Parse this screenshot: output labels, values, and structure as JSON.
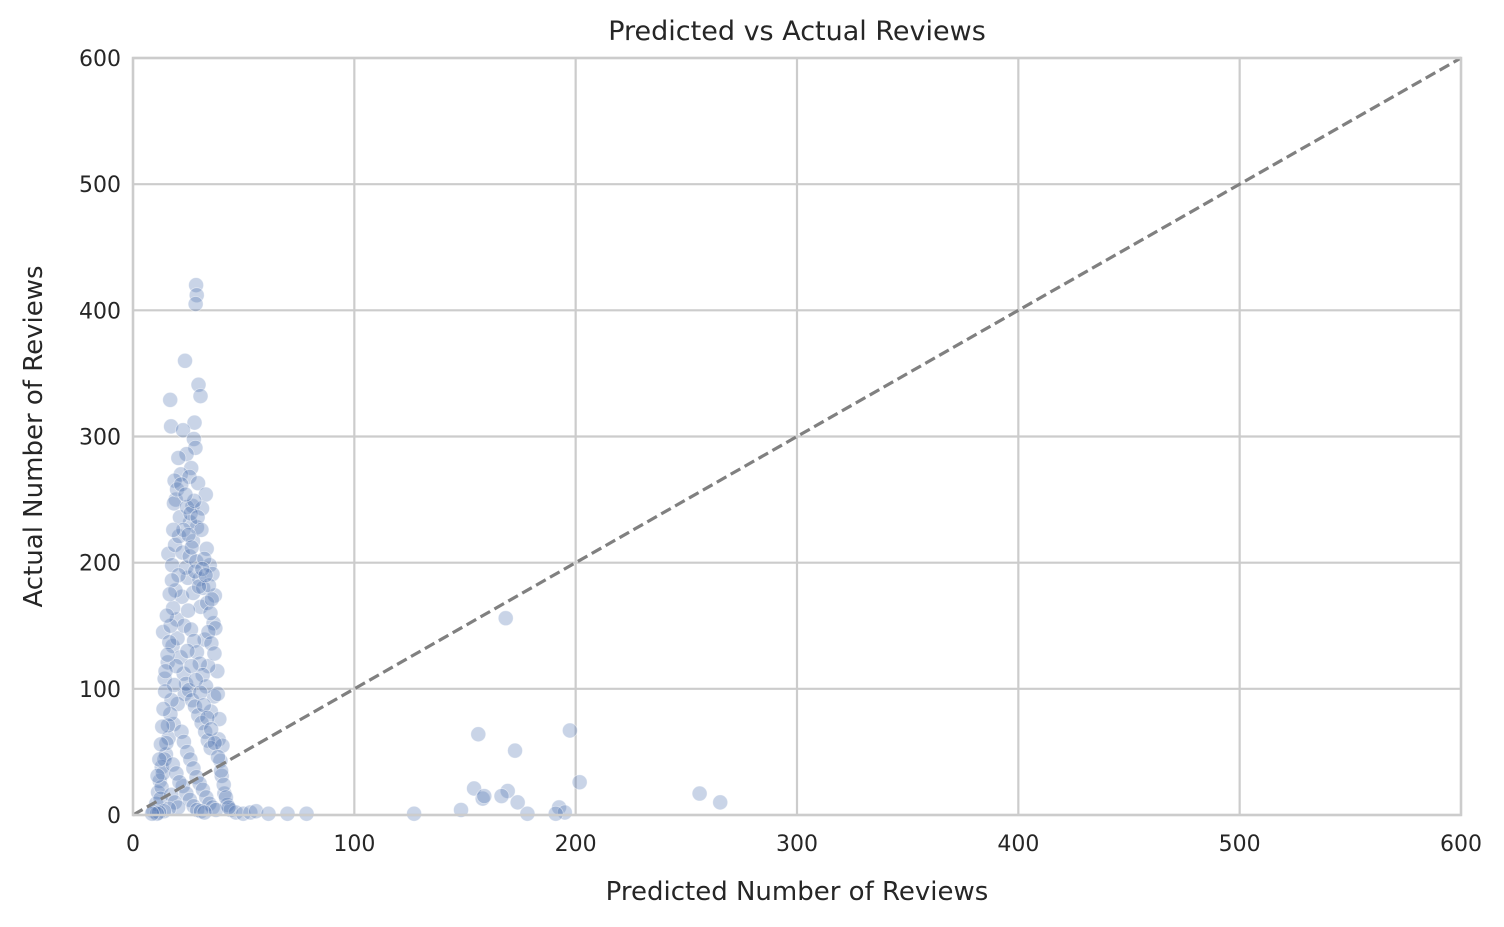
{
  "chart_data": {
    "type": "scatter",
    "title": "Predicted vs Actual Reviews",
    "xlabel": "Predicted Number of Reviews",
    "ylabel": "Actual Number of Reviews",
    "xlim": [
      0,
      600
    ],
    "ylim": [
      0,
      600
    ],
    "xticks": [
      "0",
      "100",
      "200",
      "300",
      "400",
      "500",
      "600"
    ],
    "yticks": [
      "0",
      "100",
      "200",
      "300",
      "400",
      "500",
      "600"
    ],
    "grid": true,
    "legend": "none",
    "reference_line": {
      "style": "dashed",
      "from": [
        0,
        0
      ],
      "to": [
        600,
        600
      ]
    },
    "colors": {
      "points": "#4c72b0",
      "reference_line": "#808080",
      "grid": "#cccccc",
      "spine": "#cccccc"
    },
    "point_opacity": 0.3,
    "series": [
      {
        "points": [
          [
            28.5,
            420
          ],
          [
            28.8,
            412
          ],
          [
            28.3,
            405
          ],
          [
            23.5,
            360
          ],
          [
            29.6,
            341
          ],
          [
            30.5,
            332
          ],
          [
            16.8,
            329
          ],
          [
            27.8,
            311
          ],
          [
            17.2,
            308
          ],
          [
            22.6,
            305
          ],
          [
            27.5,
            298
          ],
          [
            28.2,
            291
          ],
          [
            24.2,
            286
          ],
          [
            20.5,
            283
          ],
          [
            26.3,
            275
          ],
          [
            21.6,
            270
          ],
          [
            25.5,
            268
          ],
          [
            18.8,
            265
          ],
          [
            29.4,
            263
          ],
          [
            19.3,
            250
          ],
          [
            26.9,
            245
          ],
          [
            32.9,
            254
          ],
          [
            18.5,
            247
          ],
          [
            31.2,
            243
          ],
          [
            28.9,
            228
          ],
          [
            25.8,
            232
          ],
          [
            33.3,
            211
          ],
          [
            16.0,
            207
          ],
          [
            34.7,
            198
          ],
          [
            35.9,
            191
          ],
          [
            37.0,
            174
          ],
          [
            168.4,
            156
          ],
          [
            36.4,
            152
          ],
          [
            13.6,
            145
          ],
          [
            38.1,
            114
          ],
          [
            36.6,
            94
          ],
          [
            35.2,
            82
          ],
          [
            14.3,
            108
          ],
          [
            15.7,
            121
          ],
          [
            17.9,
            134
          ],
          [
            19.8,
            155
          ],
          [
            22.1,
            173
          ],
          [
            24.8,
            188
          ],
          [
            27.2,
            176
          ],
          [
            30.6,
            165
          ],
          [
            32.4,
            139
          ],
          [
            34.0,
            118
          ],
          [
            23.4,
            96
          ],
          [
            20.2,
            88
          ],
          [
            18.4,
            72
          ],
          [
            16.1,
            61
          ],
          [
            14.9,
            48
          ],
          [
            13.0,
            38
          ],
          [
            12.1,
            27
          ],
          [
            11.3,
            18
          ],
          [
            10.5,
            9
          ],
          [
            9.2,
            3
          ],
          [
            38.7,
            60
          ],
          [
            39.5,
            43
          ],
          [
            40.1,
            31
          ],
          [
            41.3,
            17
          ],
          [
            42.6,
            8
          ],
          [
            44.1,
            4
          ],
          [
            46.5,
            2
          ],
          [
            49.8,
            1
          ],
          [
            53.0,
            2
          ],
          [
            55.6,
            3
          ],
          [
            61.2,
            1
          ],
          [
            69.8,
            1
          ],
          [
            78.4,
            1
          ],
          [
            156.0,
            64
          ],
          [
            197.4,
            67
          ],
          [
            172.6,
            51
          ],
          [
            201.8,
            26
          ],
          [
            154.1,
            21
          ],
          [
            169.3,
            19
          ],
          [
            166.5,
            15
          ],
          [
            158.0,
            13
          ],
          [
            158.7,
            15
          ],
          [
            173.8,
            10
          ],
          [
            148.2,
            4
          ],
          [
            192.5,
            6
          ],
          [
            195.1,
            2
          ],
          [
            191.0,
            1
          ],
          [
            178.2,
            1
          ],
          [
            127.0,
            1
          ],
          [
            256.0,
            17
          ],
          [
            265.3,
            10
          ],
          [
            20.1,
            140
          ],
          [
            21.5,
            125
          ],
          [
            22.9,
            112
          ],
          [
            24.0,
            104
          ],
          [
            25.3,
            99
          ],
          [
            26.7,
            91
          ],
          [
            28.0,
            86
          ],
          [
            29.5,
            79
          ],
          [
            31.0,
            73
          ],
          [
            32.6,
            66
          ],
          [
            33.8,
            59
          ],
          [
            35.1,
            53
          ],
          [
            23.1,
            150
          ],
          [
            24.9,
            162
          ],
          [
            26.2,
            147
          ],
          [
            27.6,
            138
          ],
          [
            28.9,
            129
          ],
          [
            30.2,
            120
          ],
          [
            31.5,
            111
          ],
          [
            33.0,
            102
          ],
          [
            19.5,
            118
          ],
          [
            18.6,
            103
          ],
          [
            17.4,
            91
          ],
          [
            16.9,
            80
          ],
          [
            15.8,
            71
          ],
          [
            15.1,
            57
          ],
          [
            14.2,
            44
          ],
          [
            13.5,
            33
          ],
          [
            12.9,
            22
          ],
          [
            12.4,
            13
          ],
          [
            17.7,
            198
          ],
          [
            19.0,
            214
          ],
          [
            20.8,
            221
          ],
          [
            22.4,
            208
          ],
          [
            23.9,
            196
          ],
          [
            25.6,
            205
          ],
          [
            27.1,
            217
          ],
          [
            28.6,
            201
          ],
          [
            30.0,
            187
          ],
          [
            31.7,
            180
          ],
          [
            33.5,
            168
          ],
          [
            35.0,
            160
          ],
          [
            21.2,
            236
          ],
          [
            22.8,
            226
          ],
          [
            24.4,
            244
          ],
          [
            26.0,
            239
          ],
          [
            27.7,
            249
          ],
          [
            29.2,
            236
          ],
          [
            30.9,
            226
          ],
          [
            32.2,
            203
          ],
          [
            34.3,
            182
          ],
          [
            35.6,
            171
          ],
          [
            37.2,
            148
          ],
          [
            20.6,
            190
          ],
          [
            19.2,
            178
          ],
          [
            18.1,
            164
          ],
          [
            17.0,
            150
          ],
          [
            16.4,
            137
          ],
          [
            15.6,
            127
          ],
          [
            14.7,
            114
          ],
          [
            21.9,
            66
          ],
          [
            23.0,
            58
          ],
          [
            24.5,
            50
          ],
          [
            25.9,
            44
          ],
          [
            27.3,
            37
          ],
          [
            28.7,
            30
          ],
          [
            30.1,
            25
          ],
          [
            31.6,
            20
          ],
          [
            33.1,
            14
          ],
          [
            34.5,
            9
          ],
          [
            36.0,
            6
          ],
          [
            37.5,
            4
          ],
          [
            22.5,
            23
          ],
          [
            24.1,
            17
          ],
          [
            25.7,
            12
          ],
          [
            27.4,
            7
          ],
          [
            29.0,
            4
          ],
          [
            30.7,
            3
          ],
          [
            32.3,
            2
          ],
          [
            18.0,
            40
          ],
          [
            19.6,
            33
          ],
          [
            21.0,
            26
          ],
          [
            17.3,
            16
          ],
          [
            18.9,
            10
          ],
          [
            20.4,
            6
          ],
          [
            16.2,
            5
          ],
          [
            14.0,
            3
          ],
          [
            11.8,
            2
          ],
          [
            10.8,
            1
          ],
          [
            8.6,
            1
          ],
          [
            19.9,
            258
          ],
          [
            21.8,
            262
          ],
          [
            23.7,
            254
          ],
          [
            25.1,
            222
          ],
          [
            26.5,
            212
          ],
          [
            28.1,
            193
          ],
          [
            29.8,
            181
          ],
          [
            31.3,
            195
          ],
          [
            32.8,
            190
          ],
          [
            34.1,
            145
          ],
          [
            35.4,
            136
          ],
          [
            36.8,
            128
          ],
          [
            38.3,
            96
          ],
          [
            39.0,
            76
          ],
          [
            40.4,
            55
          ],
          [
            18.2,
            226
          ],
          [
            17.6,
            186
          ],
          [
            16.6,
            175
          ],
          [
            15.3,
            158
          ],
          [
            14.5,
            98
          ],
          [
            13.8,
            84
          ],
          [
            13.2,
            70
          ],
          [
            12.6,
            56
          ],
          [
            11.9,
            44
          ],
          [
            11.1,
            31
          ],
          [
            24.6,
            130
          ],
          [
            26.4,
            118
          ],
          [
            28.4,
            107
          ],
          [
            30.4,
            97
          ],
          [
            32.0,
            87
          ],
          [
            33.6,
            77
          ],
          [
            35.3,
            68
          ],
          [
            36.9,
            57
          ],
          [
            38.4,
            46
          ],
          [
            39.8,
            35
          ],
          [
            41.0,
            24
          ],
          [
            42.0,
            14
          ],
          [
            43.2,
            6
          ]
        ]
      }
    ]
  }
}
